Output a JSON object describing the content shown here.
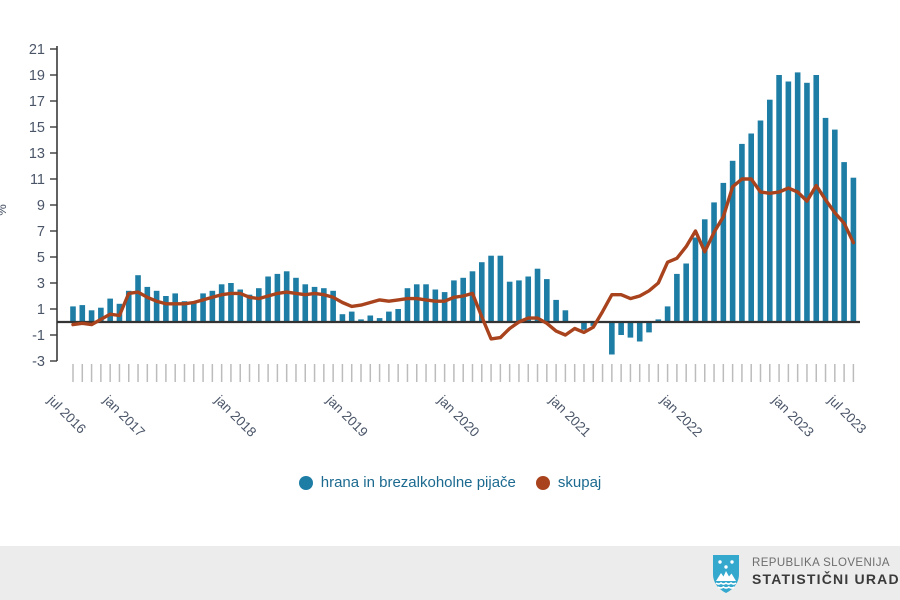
{
  "chart": {
    "y_axis_title": "%",
    "legend": [
      {
        "label": "hrana in brezalkoholne pijače",
        "color": "#1d7da5",
        "series": "food"
      },
      {
        "label": "skupaj",
        "color": "#a8431d",
        "series": "total"
      }
    ]
  },
  "chart_data": {
    "type": "bar+line",
    "title": "",
    "xlabel": "",
    "ylabel": "%",
    "ylim": [
      -3,
      21
    ],
    "y_ticks": [
      -3,
      -1,
      1,
      3,
      5,
      7,
      9,
      11,
      13,
      15,
      17,
      19,
      21
    ],
    "grid": false,
    "legend_position": "bottom-center",
    "x_start": "jul 2016",
    "x_end": "jul 2023",
    "x_tick_labels": [
      {
        "index": 0,
        "label": "jul 2016"
      },
      {
        "index": 6,
        "label": "jan 2017"
      },
      {
        "index": 18,
        "label": "jan 2018"
      },
      {
        "index": 30,
        "label": "jan 2019"
      },
      {
        "index": 42,
        "label": "jan 2020"
      },
      {
        "index": 54,
        "label": "jan 2021"
      },
      {
        "index": 66,
        "label": "jan 2022"
      },
      {
        "index": 78,
        "label": "jan 2023"
      },
      {
        "index": 84,
        "label": "jul 2023"
      }
    ],
    "series": [
      {
        "name": "hrana in brezalkoholne pijače",
        "type": "bar",
        "color": "#1d7da5",
        "values": [
          1.2,
          1.3,
          0.9,
          1.1,
          1.8,
          1.4,
          2.4,
          3.6,
          2.7,
          2.4,
          2.0,
          2.2,
          1.6,
          1.5,
          2.2,
          2.4,
          2.9,
          3.0,
          2.5,
          2.1,
          2.6,
          3.5,
          3.7,
          3.9,
          3.4,
          2.9,
          2.7,
          2.6,
          2.4,
          0.6,
          0.8,
          0.2,
          0.5,
          0.3,
          0.8,
          1.0,
          2.6,
          2.9,
          2.9,
          2.5,
          2.3,
          3.2,
          3.4,
          3.9,
          4.6,
          5.1,
          5.1,
          3.1,
          3.2,
          3.5,
          4.1,
          3.3,
          1.7,
          0.9,
          0.0,
          -0.6,
          -0.3,
          0.0,
          -2.5,
          -1.0,
          -1.2,
          -1.5,
          -0.8,
          0.2,
          1.2,
          3.7,
          4.5,
          6.5,
          7.9,
          9.2,
          10.7,
          12.4,
          13.7,
          14.5,
          15.5,
          17.1,
          19.0,
          18.5,
          19.2,
          18.4,
          19.0,
          15.7,
          14.8,
          12.3,
          11.1
        ]
      },
      {
        "name": "skupaj",
        "type": "line",
        "color": "#a8431d",
        "values": [
          -0.2,
          -0.1,
          -0.2,
          0.2,
          0.6,
          0.5,
          2.2,
          2.3,
          1.9,
          1.6,
          1.4,
          1.4,
          1.4,
          1.5,
          1.7,
          1.9,
          2.1,
          2.2,
          2.2,
          1.9,
          1.8,
          2.0,
          2.2,
          2.3,
          2.2,
          2.1,
          2.2,
          2.1,
          1.9,
          1.5,
          1.2,
          1.3,
          1.5,
          1.7,
          1.6,
          1.7,
          1.8,
          1.8,
          1.7,
          1.6,
          1.6,
          1.9,
          2.0,
          2.2,
          0.4,
          -1.3,
          -1.2,
          -0.5,
          0.0,
          0.3,
          0.3,
          -0.1,
          -0.7,
          -1.0,
          -0.5,
          -0.8,
          -0.4,
          0.8,
          2.1,
          2.1,
          1.8,
          2.0,
          2.4,
          3.0,
          4.6,
          4.9,
          5.8,
          7.0,
          5.4,
          6.9,
          8.1,
          10.4,
          11.0,
          11.0,
          10.0,
          9.9,
          10.0,
          10.3,
          10.0,
          9.3,
          10.5,
          9.4,
          8.4,
          7.6,
          6.1
        ]
      }
    ]
  },
  "footer": {
    "line1": "REPUBLIKA SLOVENIJA",
    "line2": "STATISTIČNI URAD"
  },
  "colors": {
    "bar": "#1d7da5",
    "line": "#a8431d",
    "axis": "#3a3a3a",
    "tick_label": "#4a5568",
    "month_tick": "#bcbcbc",
    "footer_bg": "#ececec",
    "logo_blue": "#35a8cd"
  }
}
